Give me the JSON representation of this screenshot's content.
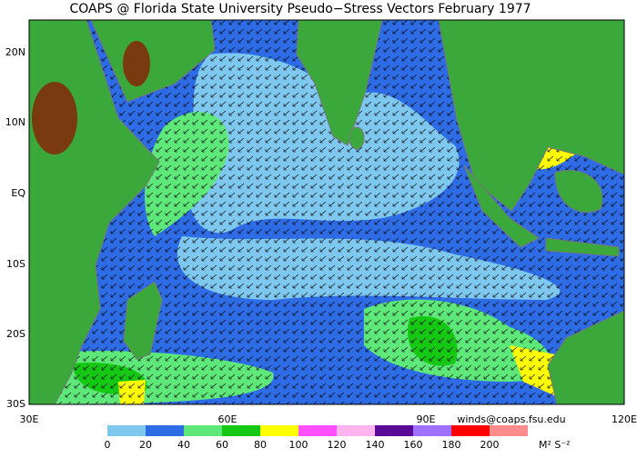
{
  "title": "COAPS @ Florida State University Pseudo−Stress Vectors  February 1977",
  "map": {
    "lat_labels": [
      "20N",
      "10N",
      "EQ",
      "10S",
      "20S",
      "30S"
    ],
    "lon_labels": [
      "30E",
      "60E",
      "90E",
      "120E"
    ]
  },
  "credit": "winds@coaps.fsu.edu",
  "legend": {
    "ticks": [
      0,
      20,
      40,
      60,
      80,
      100,
      120,
      140,
      160,
      180,
      200
    ],
    "colors": [
      "#7ec8f0",
      "#2e6ce6",
      "#5ee87a",
      "#14c814",
      "#ffff00",
      "#ff50ff",
      "#ffb4f0",
      "#5a0a96",
      "#a070ff",
      "#ff0000",
      "#ff8c8c"
    ],
    "unit": "M² S⁻²"
  }
}
